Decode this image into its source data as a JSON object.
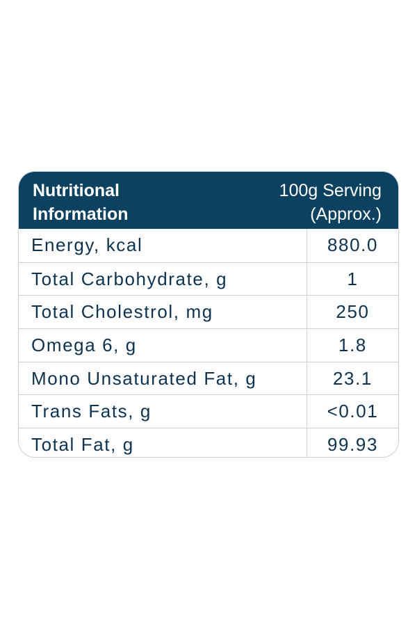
{
  "header": {
    "title_line1": "Nutritional",
    "title_line2": "Information",
    "serving_line1": "100g Serving",
    "serving_line2": "(Approx.)"
  },
  "colors": {
    "header_background": "#0d4160",
    "text": "#0d3350",
    "border": "#c9d3da"
  },
  "rows": [
    {
      "label": "Energy, kcal",
      "value": "880.0"
    },
    {
      "label": "Total Carbohydrate, g",
      "value": "1"
    },
    {
      "label": "Total Cholestrol, mg",
      "value": "250"
    },
    {
      "label": "Omega 6, g",
      "value": "1.8"
    },
    {
      "label": "Mono Unsaturated Fat, g",
      "value": "23.1"
    },
    {
      "label": "Trans Fats, g",
      "value": "<0.01"
    },
    {
      "label": "Total Fat, g",
      "value": "99.93"
    }
  ]
}
